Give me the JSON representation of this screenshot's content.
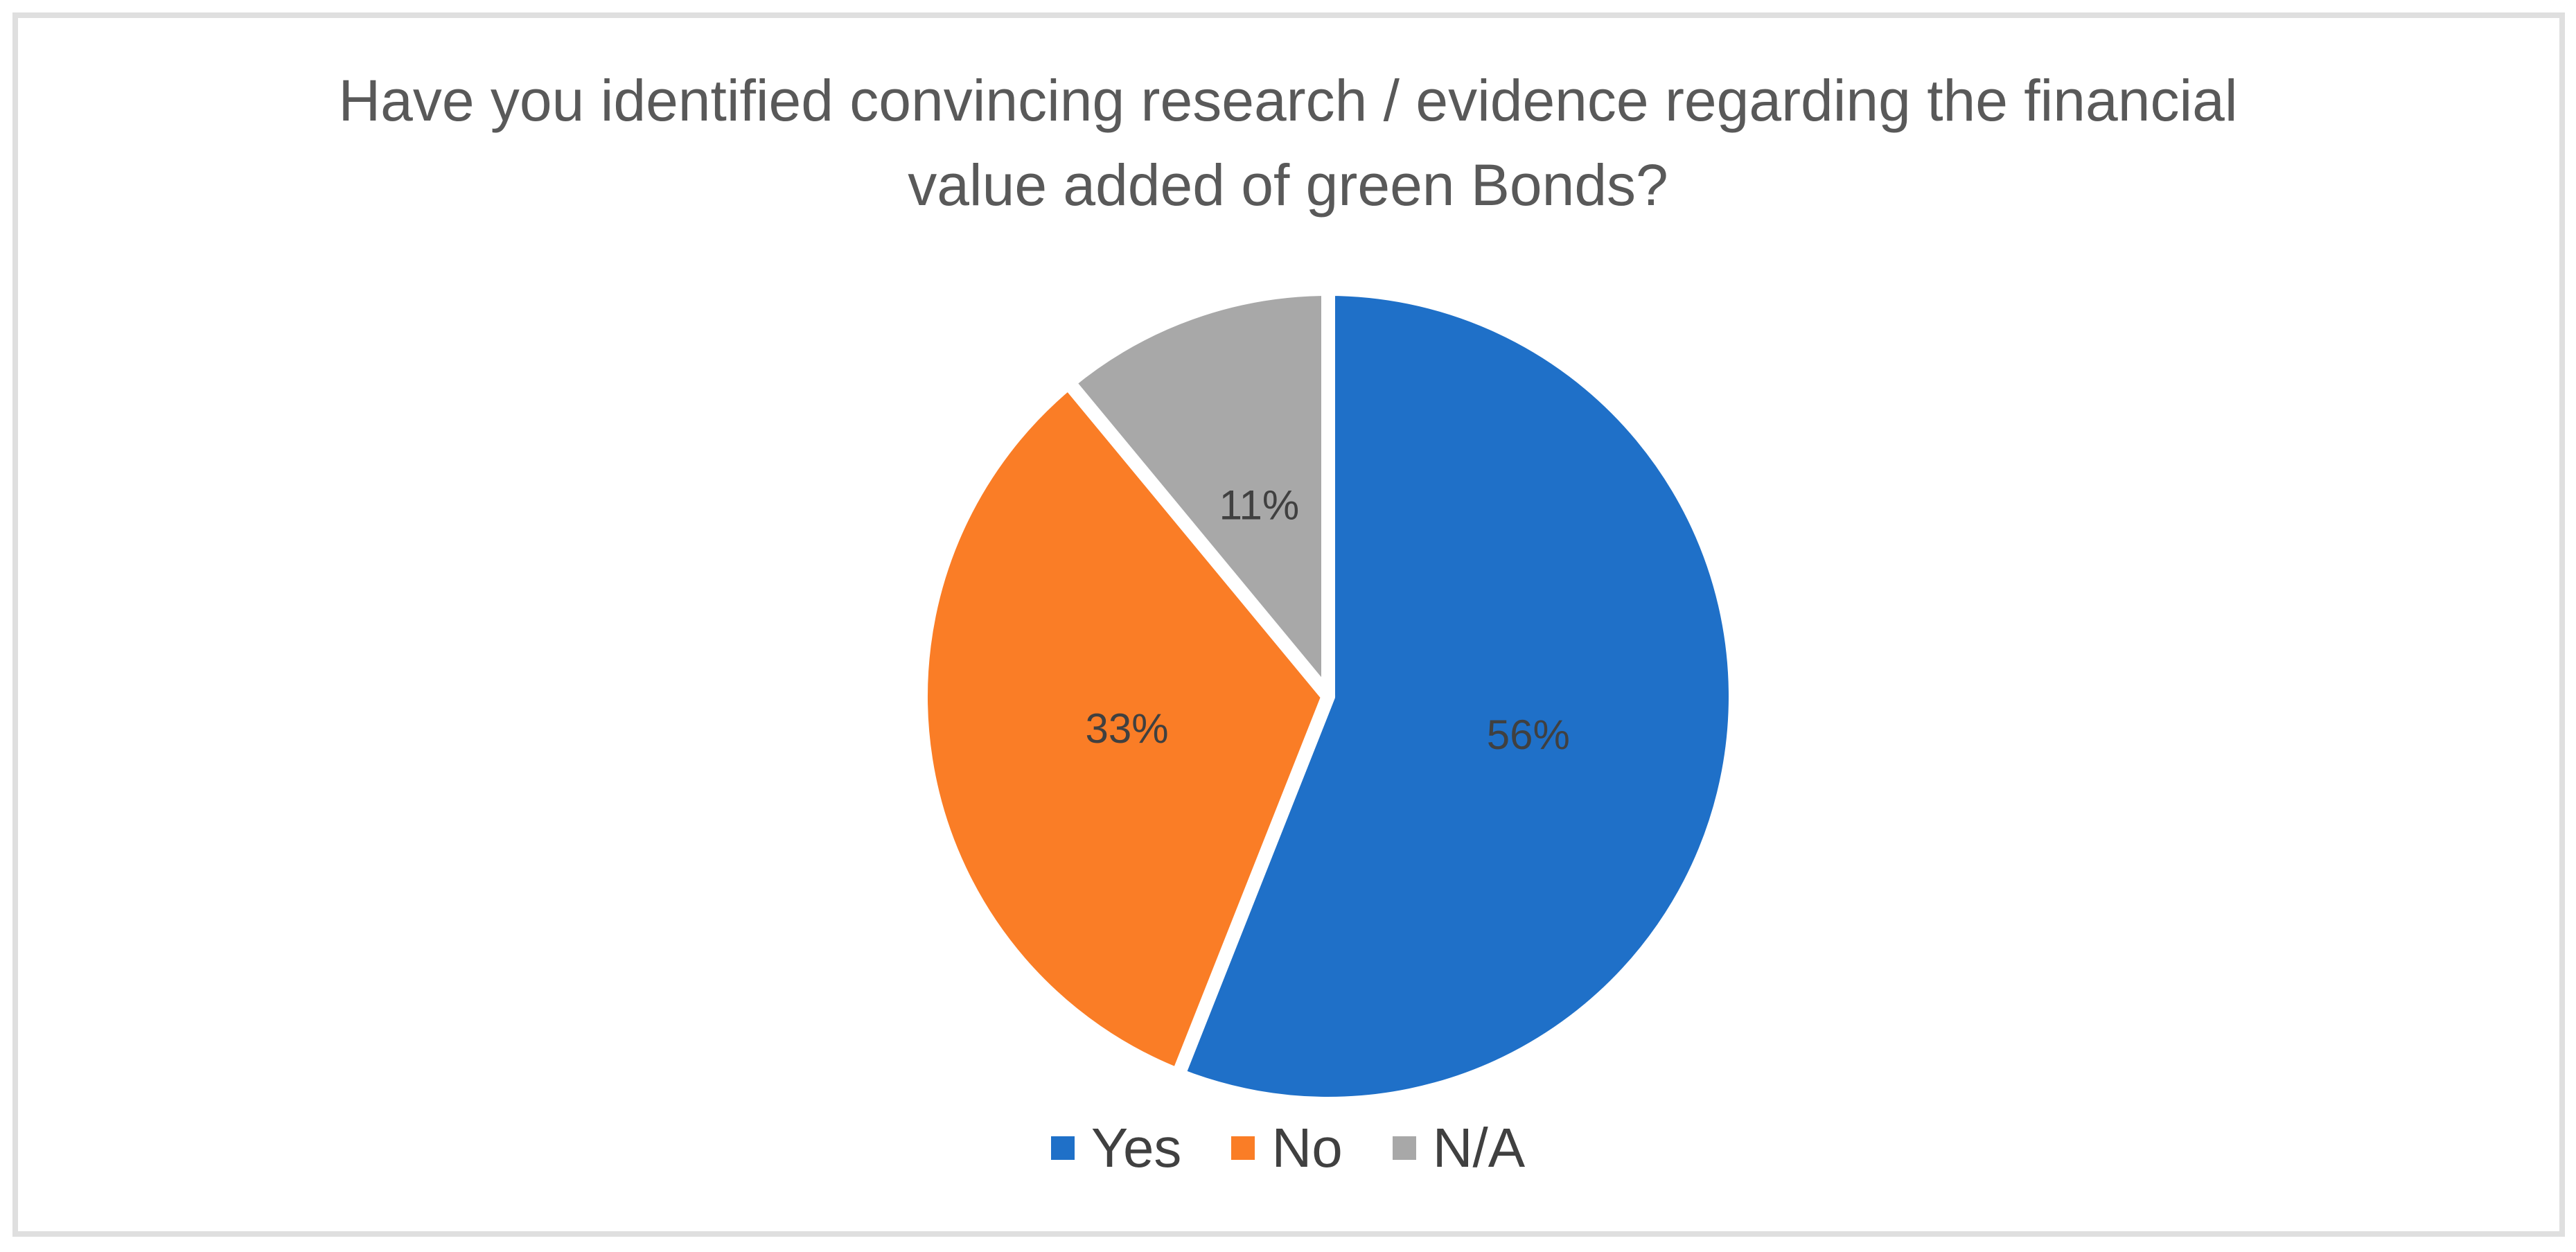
{
  "page": {
    "background_color": "#ffffff",
    "frame_border_color": "#dfdfdf"
  },
  "chart_data": {
    "type": "pie",
    "title": "Have you identified convincing research / evidence regarding the financial value added of green Bonds?",
    "title_lines": [
      "Have you identified convincing research / evidence regarding the financial",
      "value added of green Bonds?"
    ],
    "title_color": "#595959",
    "categories": [
      "Yes",
      "No",
      "N/A"
    ],
    "values": [
      56,
      33,
      11
    ],
    "data_labels": [
      "56%",
      "33%",
      "11%"
    ],
    "colors": [
      "#1F70C8",
      "#FA7D26",
      "#A8A8A8"
    ],
    "label_color": "#404040",
    "slice_border_color": "#FFFFFF",
    "legend_position": "bottom",
    "legend_text_color": "#404040",
    "start_angle_deg": 0,
    "direction": "clockwise"
  }
}
